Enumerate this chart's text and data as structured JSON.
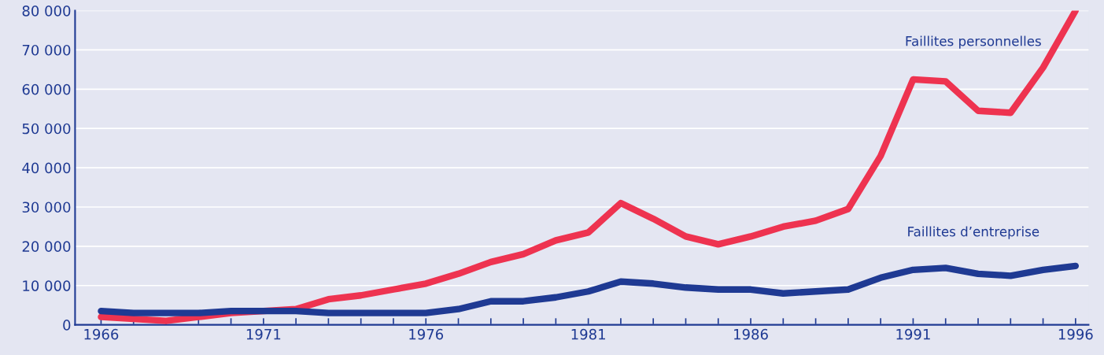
{
  "chart_data": {
    "type": "line",
    "x": [
      1966,
      1967,
      1968,
      1969,
      1970,
      1971,
      1972,
      1973,
      1974,
      1975,
      1976,
      1977,
      1978,
      1979,
      1980,
      1981,
      1982,
      1983,
      1984,
      1985,
      1986,
      1987,
      1988,
      1989,
      1990,
      1991,
      1992,
      1993,
      1994,
      1995,
      1996
    ],
    "series": [
      {
        "name": "Faillites personnelles",
        "color": "#ee3350",
        "values": [
          2000,
          1500,
          1000,
          2000,
          3000,
          3500,
          4000,
          6500,
          7500,
          9000,
          10500,
          13000,
          16000,
          18000,
          21500,
          23500,
          31000,
          27000,
          22500,
          20500,
          22500,
          25000,
          26500,
          29500,
          43000,
          62500,
          62000,
          54500,
          54000,
          65500,
          80000
        ]
      },
      {
        "name": "Faillites d’entreprise",
        "color": "#1f3a93",
        "values": [
          3500,
          3000,
          3000,
          3000,
          3500,
          3500,
          3500,
          3000,
          3000,
          3000,
          3000,
          4000,
          6000,
          6000,
          7000,
          8500,
          11000,
          10500,
          9500,
          9000,
          9000,
          8000,
          8500,
          9000,
          12000,
          14000,
          14500,
          13000,
          12500,
          14000,
          15000
        ]
      }
    ],
    "xlim": [
      1965.2,
      1996.4
    ],
    "ylim": [
      0,
      80000
    ],
    "xticks": [
      {
        "value": 1966,
        "label": "1966"
      },
      {
        "value": 1967,
        "label": null
      },
      {
        "value": 1968,
        "label": null
      },
      {
        "value": 1969,
        "label": null
      },
      {
        "value": 1970,
        "label": null
      },
      {
        "value": 1971,
        "label": "1971"
      },
      {
        "value": 1972,
        "label": null
      },
      {
        "value": 1973,
        "label": null
      },
      {
        "value": 1974,
        "label": null
      },
      {
        "value": 1975,
        "label": null
      },
      {
        "value": 1976,
        "label": "1976"
      },
      {
        "value": 1977,
        "label": null
      },
      {
        "value": 1978,
        "label": null
      },
      {
        "value": 1979,
        "label": null
      },
      {
        "value": 1980,
        "label": null
      },
      {
        "value": 1981,
        "label": "1981"
      },
      {
        "value": 1982,
        "label": null
      },
      {
        "value": 1983,
        "label": null
      },
      {
        "value": 1984,
        "label": null
      },
      {
        "value": 1985,
        "label": null
      },
      {
        "value": 1986,
        "label": "1986"
      },
      {
        "value": 1987,
        "label": null
      },
      {
        "value": 1988,
        "label": null
      },
      {
        "value": 1989,
        "label": null
      },
      {
        "value": 1990,
        "label": null
      },
      {
        "value": 1991,
        "label": "1991"
      },
      {
        "value": 1992,
        "label": null
      },
      {
        "value": 1993,
        "label": null
      },
      {
        "value": 1994,
        "label": null
      },
      {
        "value": 1995,
        "label": null
      },
      {
        "value": 1996,
        "label": "1996"
      }
    ],
    "yticks": [
      {
        "value": 0,
        "label": "0"
      },
      {
        "value": 10000,
        "label": "10 000"
      },
      {
        "value": 20000,
        "label": "20 000"
      },
      {
        "value": 30000,
        "label": "30 000"
      },
      {
        "value": 40000,
        "label": "40 000"
      },
      {
        "value": 50000,
        "label": "50 000"
      },
      {
        "value": 60000,
        "label": "60 000"
      },
      {
        "value": 70000,
        "label": "70 000"
      },
      {
        "value": 80000,
        "label": "80 000"
      }
    ],
    "grid": "y",
    "legend": false,
    "marker": "none",
    "line_style": "solid"
  }
}
